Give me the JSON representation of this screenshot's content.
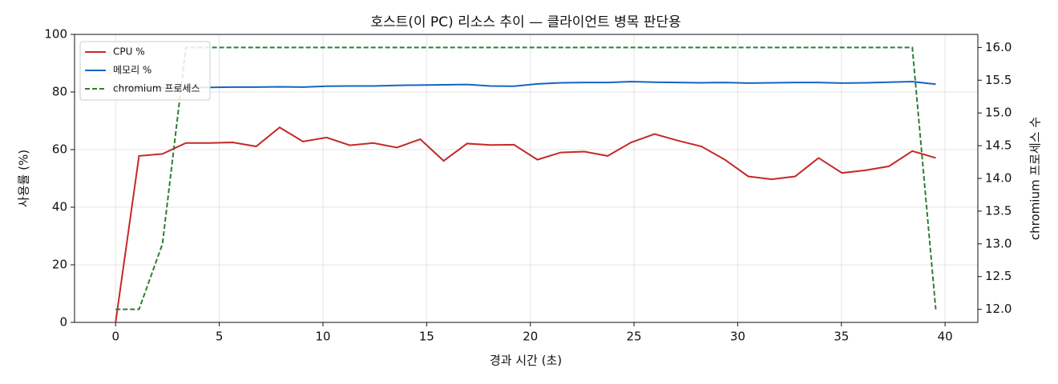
{
  "chart_data": {
    "type": "line",
    "title": "호스트(이 PC) 리소스 추이 — 클라이언트 병목 판단용",
    "x_label": "경과 시간 (초)",
    "y_label": "사용률 (%)",
    "y2_label": "chromium 프로세스 수",
    "x": [
      0,
      1.13,
      2.26,
      3.39,
      4.52,
      5.65,
      6.78,
      7.91,
      9.04,
      10.17,
      11.3,
      12.43,
      13.56,
      14.69,
      15.82,
      16.95,
      18.08,
      19.21,
      20.34,
      21.47,
      22.6,
      23.73,
      24.86,
      25.99,
      27.12,
      28.25,
      29.38,
      30.51,
      31.64,
      32.77,
      33.9,
      35.03,
      36.16,
      37.29,
      38.42,
      39.55
    ],
    "series": [
      {
        "name": "CPU %",
        "color": "#c62828",
        "style": "solid",
        "values": [
          0,
          57.8,
          58.5,
          62.3,
          62.3,
          62.5,
          61.1,
          67.7,
          62.8,
          64.2,
          61.5,
          62.3,
          60.7,
          63.6,
          56.1,
          62.1,
          61.6,
          61.7,
          56.5,
          59.0,
          59.3,
          57.8,
          62.5,
          65.4,
          63.1,
          61.1,
          56.5,
          50.7,
          49.7,
          50.7,
          57.1,
          51.9,
          52.8,
          54.2,
          59.5,
          57.1
        ]
      },
      {
        "name": "메모리 %",
        "color": "#1565c0",
        "style": "solid",
        "values": [
          81.3,
          81.4,
          81.5,
          81.6,
          81.6,
          81.7,
          81.7,
          81.8,
          81.7,
          82.0,
          82.1,
          82.1,
          82.3,
          82.4,
          82.5,
          82.6,
          82.1,
          82.0,
          82.8,
          83.2,
          83.3,
          83.3,
          83.6,
          83.4,
          83.3,
          83.2,
          83.3,
          83.1,
          83.2,
          83.3,
          83.3,
          83.1,
          83.2,
          83.4,
          83.6,
          82.7
        ]
      },
      {
        "name": "chromium 프로세스",
        "color": "#2e7d32",
        "style": "dashed",
        "axis": "y2",
        "values": [
          12,
          12,
          13,
          16,
          16,
          16,
          16,
          16,
          16,
          16,
          16,
          16,
          16,
          16,
          16,
          16,
          16,
          16,
          16,
          16,
          16,
          16,
          16,
          16,
          16,
          16,
          16,
          16,
          16,
          16,
          16,
          16,
          16,
          16,
          16,
          12
        ]
      }
    ],
    "xlim": [
      -1.98,
      41.58
    ],
    "xticks": [
      0,
      5,
      10,
      15,
      20,
      25,
      30,
      35,
      40
    ],
    "ylim": [
      0,
      100
    ],
    "yticks": [
      0,
      20,
      40,
      60,
      80,
      100
    ],
    "y2lim": [
      11.8,
      16.2
    ],
    "y2ticks": [
      {
        "value": 12,
        "label": "12.0"
      },
      {
        "value": 12.5,
        "label": "12.5"
      },
      {
        "value": 13,
        "label": "13.0"
      },
      {
        "value": 13.5,
        "label": "13.5"
      },
      {
        "value": 14,
        "label": "14.0"
      },
      {
        "value": 14.5,
        "label": "14.5"
      },
      {
        "value": 15,
        "label": "15.0"
      },
      {
        "value": 15.5,
        "label": "15.5"
      },
      {
        "value": 16,
        "label": "16.0"
      }
    ],
    "grid": true,
    "legend": "upper-left"
  }
}
